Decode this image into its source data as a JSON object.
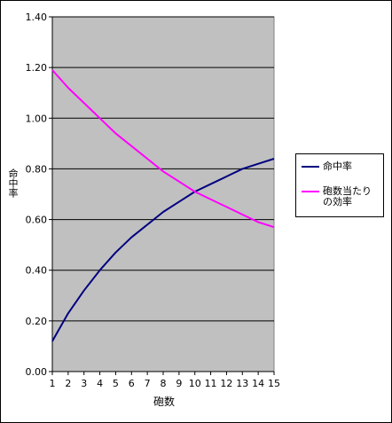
{
  "chart_data": {
    "type": "line",
    "title": "",
    "xlabel": "砲数",
    "ylabel": "命中率",
    "x": [
      1,
      2,
      3,
      4,
      5,
      6,
      7,
      8,
      9,
      10,
      11,
      12,
      13,
      14,
      15
    ],
    "ylim": [
      0,
      1.4
    ],
    "yticks": [
      "0.00",
      "0.20",
      "0.40",
      "0.60",
      "0.80",
      "1.00",
      "1.20",
      "1.40"
    ],
    "grid": "horizontal",
    "plot_background": "#c0c0c0",
    "legend_position": "right",
    "series": [
      {
        "name": "命中率",
        "color": "#000080",
        "values": [
          0.12,
          0.23,
          0.32,
          0.4,
          0.47,
          0.53,
          0.58,
          0.63,
          0.67,
          0.71,
          0.74,
          0.77,
          0.8,
          0.82,
          0.84
        ]
      },
      {
        "name": "砲数当たりの効率",
        "color": "#ff00ff",
        "values": [
          1.19,
          1.12,
          1.06,
          1.0,
          0.94,
          0.89,
          0.84,
          0.79,
          0.75,
          0.71,
          0.68,
          0.65,
          0.62,
          0.59,
          0.57
        ]
      }
    ]
  }
}
